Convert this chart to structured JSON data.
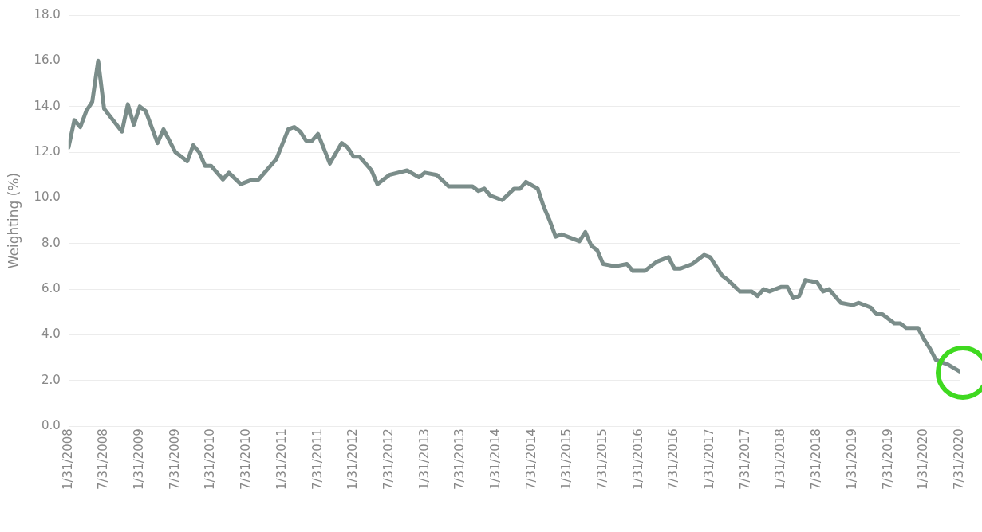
{
  "chart_data": {
    "type": "line",
    "ylabel": "Weighting (%)",
    "grid": "y",
    "legend": false,
    "marker": "none",
    "line_style": "solid",
    "x": [
      "2008-01",
      "2008-02",
      "2008-03",
      "2008-04",
      "2008-05",
      "2008-06",
      "2008-07",
      "2008-10",
      "2008-11",
      "2008-12",
      "2009-01",
      "2009-02",
      "2009-04",
      "2009-05",
      "2009-07",
      "2009-09",
      "2009-10",
      "2009-11",
      "2009-12",
      "2010-01",
      "2010-03",
      "2010-04",
      "2010-06",
      "2010-08",
      "2010-09",
      "2010-10",
      "2010-12",
      "2011-02",
      "2011-03",
      "2011-04",
      "2011-05",
      "2011-06",
      "2011-07",
      "2011-09",
      "2011-11",
      "2011-12",
      "2012-01",
      "2012-02",
      "2012-04",
      "2012-05",
      "2012-07",
      "2012-10",
      "2012-12",
      "2013-01",
      "2013-03",
      "2013-05",
      "2013-07",
      "2013-09",
      "2013-10",
      "2013-11",
      "2013-12",
      "2014-02",
      "2014-04",
      "2014-05",
      "2014-06",
      "2014-08",
      "2014-09",
      "2014-10",
      "2014-11",
      "2014-12",
      "2015-03",
      "2015-04",
      "2015-05",
      "2015-06",
      "2015-07",
      "2015-09",
      "2015-11",
      "2015-12",
      "2016-02",
      "2016-04",
      "2016-06",
      "2016-07",
      "2016-08",
      "2016-10",
      "2016-12",
      "2017-01",
      "2017-03",
      "2017-04",
      "2017-06",
      "2017-08",
      "2017-09",
      "2017-10",
      "2017-11",
      "2018-01",
      "2018-02",
      "2018-03",
      "2018-04",
      "2018-05",
      "2018-07",
      "2018-08",
      "2018-09",
      "2018-11",
      "2019-01",
      "2019-02",
      "2019-04",
      "2019-05",
      "2019-06",
      "2019-08",
      "2019-09",
      "2019-10",
      "2019-12",
      "2020-01",
      "2020-02",
      "2020-03",
      "2020-04",
      "2020-05",
      "2020-07"
    ],
    "series": [
      {
        "color": "#7b8d8a",
        "values": [
          12.2,
          13.4,
          13.1,
          13.8,
          14.2,
          16.0,
          13.9,
          12.9,
          14.1,
          13.2,
          14.0,
          13.8,
          12.4,
          13.0,
          12.0,
          11.6,
          12.3,
          12.0,
          11.4,
          11.4,
          10.8,
          11.1,
          10.6,
          10.8,
          10.8,
          11.1,
          11.7,
          13.0,
          13.1,
          12.9,
          12.5,
          12.5,
          12.8,
          11.5,
          12.4,
          12.2,
          11.8,
          11.8,
          11.2,
          10.6,
          11.0,
          11.2,
          10.9,
          11.1,
          11.0,
          10.5,
          10.5,
          10.5,
          10.3,
          10.4,
          10.1,
          9.9,
          10.4,
          10.4,
          10.7,
          10.4,
          9.6,
          9.0,
          8.3,
          8.4,
          8.1,
          8.5,
          7.9,
          7.7,
          7.1,
          7.0,
          7.1,
          6.8,
          6.8,
          7.2,
          7.4,
          6.9,
          6.9,
          7.1,
          7.5,
          7.4,
          6.6,
          6.4,
          5.9,
          5.9,
          5.7,
          6.0,
          5.9,
          6.1,
          6.1,
          5.6,
          5.7,
          6.4,
          6.3,
          5.9,
          6.0,
          5.4,
          5.3,
          5.4,
          5.2,
          4.9,
          4.9,
          4.5,
          4.5,
          4.3,
          4.3,
          3.8,
          3.4,
          2.9,
          2.8,
          2.7,
          2.4
        ]
      }
    ],
    "xlim": [
      "2008-01",
      "2020-07"
    ],
    "xticks": [
      {
        "value": "2008-01",
        "label": "1/31/2008"
      },
      {
        "value": "2008-07",
        "label": "7/31/2008"
      },
      {
        "value": "2009-01",
        "label": "1/31/2009"
      },
      {
        "value": "2009-07",
        "label": "7/31/2009"
      },
      {
        "value": "2010-01",
        "label": "1/31/2010"
      },
      {
        "value": "2010-07",
        "label": "7/31/2010"
      },
      {
        "value": "2011-01",
        "label": "1/31/2011"
      },
      {
        "value": "2011-07",
        "label": "7/31/2011"
      },
      {
        "value": "2012-01",
        "label": "1/31/2012"
      },
      {
        "value": "2012-07",
        "label": "7/31/2012"
      },
      {
        "value": "2013-01",
        "label": "1/31/2013"
      },
      {
        "value": "2013-07",
        "label": "7/31/2013"
      },
      {
        "value": "2014-01",
        "label": "1/31/2014"
      },
      {
        "value": "2014-07",
        "label": "7/31/2014"
      },
      {
        "value": "2015-01",
        "label": "1/31/2015"
      },
      {
        "value": "2015-07",
        "label": "7/31/2015"
      },
      {
        "value": "2016-01",
        "label": "1/31/2016"
      },
      {
        "value": "2016-07",
        "label": "7/31/2016"
      },
      {
        "value": "2017-01",
        "label": "1/31/2017"
      },
      {
        "value": "2017-07",
        "label": "7/31/2017"
      },
      {
        "value": "2018-01",
        "label": "1/31/2018"
      },
      {
        "value": "2018-07",
        "label": "7/31/2018"
      },
      {
        "value": "2019-01",
        "label": "1/31/2019"
      },
      {
        "value": "2019-07",
        "label": "7/31/2019"
      },
      {
        "value": "2020-01",
        "label": "1/31/2020"
      },
      {
        "value": "2020-07",
        "label": "7/31/2020"
      }
    ],
    "ylim": [
      0,
      18
    ],
    "yticks": [
      {
        "value": 0,
        "label": "0.0"
      },
      {
        "value": 2,
        "label": "2.0"
      },
      {
        "value": 4,
        "label": "4.0"
      },
      {
        "value": 6,
        "label": "6.0"
      },
      {
        "value": 8,
        "label": "8.0"
      },
      {
        "value": 10,
        "label": "10.0"
      },
      {
        "value": 12,
        "label": "12.0"
      },
      {
        "value": 14,
        "label": "14.0"
      },
      {
        "value": 16,
        "label": "16.0"
      },
      {
        "value": 18,
        "label": "18.0"
      }
    ]
  }
}
